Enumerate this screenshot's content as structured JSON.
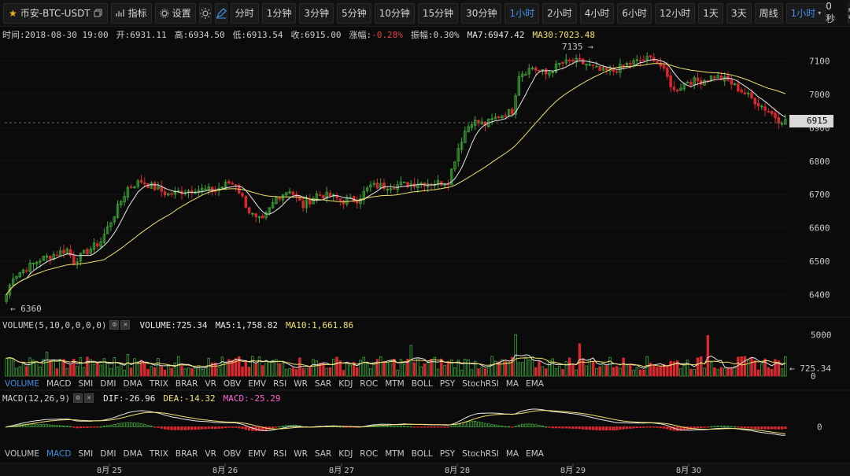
{
  "toolbar": {
    "symbol": "币安-BTC-USDT",
    "indicators_label": "指标",
    "settings_label": "设置",
    "intervals": [
      "分时",
      "1分钟",
      "3分钟",
      "5分钟",
      "10分钟",
      "15分钟",
      "30分钟",
      "1小时",
      "2小时",
      "4小时",
      "6小时",
      "12小时",
      "1天",
      "3天",
      "周线"
    ],
    "active_interval": "1小时",
    "interval_dropdown": "1小时",
    "seconds": "0秒"
  },
  "info": {
    "time_label": "时间:",
    "time": "2018-08-30 19:00",
    "open_label": "开:",
    "open": "6931.11",
    "high_label": "高:",
    "high": "6934.50",
    "low_label": "低:",
    "low": "6913.54",
    "close_label": "收:",
    "close": "6915.00",
    "change_label": "涨幅:",
    "change": "-0.28%",
    "amplitude_label": "振幅:",
    "amplitude": "0.30%",
    "ma7_label": "MA7:",
    "ma7": "6947.42",
    "ma30_label": "MA30:",
    "ma30": "7023.48"
  },
  "volume_info": {
    "name": "VOLUME(5,10,0,0,0,0)",
    "volume_label": "VOLUME:",
    "volume": "725.34",
    "ma5_label": "MA5:",
    "ma5": "1,758.82",
    "ma10_label": "MA10:",
    "ma10": "1,661.86"
  },
  "macd_info": {
    "name": "MACD(12,26,9)",
    "dif_label": "DIF:",
    "dif": "-26.96",
    "dea_label": "DEA:",
    "dea": "-14.32",
    "macd_label": "MACD:",
    "macd": "-25.29"
  },
  "indicator_tabs": [
    "VOLUME",
    "MACD",
    "SMI",
    "DMI",
    "DMA",
    "TRIX",
    "BRAR",
    "VR",
    "OBV",
    "EMV",
    "RSI",
    "WR",
    "SAR",
    "KDJ",
    "ROC",
    "MTM",
    "BOLL",
    "PSY",
    "StochRSI",
    "MA",
    "EMA"
  ],
  "vol_tabs_active": "VOLUME",
  "macd_tabs_active": "MACD",
  "price_box": "6915",
  "annotations": {
    "high": "7135",
    "low": "6360",
    "vol_last": "725.34"
  },
  "colors": {
    "up": "#3ea83a",
    "down": "#d8292f",
    "ma7": "#e8e8e8",
    "ma30": "#f2e26b",
    "active": "#3f8fe2",
    "bg": "#0b0b0b"
  },
  "chart_data": {
    "type": "candlestick",
    "x_tick_labels": [
      "8月 25",
      "8月 26",
      "8月 27",
      "8月 28",
      "8月 29",
      "8月 30"
    ],
    "price_axis": {
      "ticks": [
        "6400",
        "6500",
        "6600",
        "6700",
        "6800",
        "6900",
        "7000",
        "7100"
      ],
      "range": [
        6340,
        7160
      ]
    },
    "volume_axis": {
      "ticks": [
        "5000",
        "0"
      ],
      "range": [
        0,
        5500
      ]
    },
    "macd_axis": {
      "ticks": [
        "0"
      ],
      "range": [
        -55,
        55
      ]
    },
    "anchors": [
      [
        0,
        6400
      ],
      [
        2,
        6455
      ],
      [
        6,
        6480
      ],
      [
        10,
        6505
      ],
      [
        14,
        6520
      ],
      [
        18,
        6535
      ],
      [
        20,
        6500
      ],
      [
        24,
        6530
      ],
      [
        28,
        6560
      ],
      [
        32,
        6640
      ],
      [
        36,
        6720
      ],
      [
        40,
        6740
      ],
      [
        44,
        6720
      ],
      [
        48,
        6700
      ],
      [
        52,
        6710
      ],
      [
        56,
        6715
      ],
      [
        62,
        6712
      ],
      [
        66,
        6735
      ],
      [
        68,
        6730
      ],
      [
        72,
        6650
      ],
      [
        74,
        6625
      ],
      [
        76,
        6620
      ],
      [
        80,
        6690
      ],
      [
        84,
        6715
      ],
      [
        86,
        6690
      ],
      [
        88,
        6665
      ],
      [
        92,
        6700
      ],
      [
        96,
        6695
      ],
      [
        100,
        6680
      ],
      [
        104,
        6685
      ],
      [
        108,
        6725
      ],
      [
        112,
        6725
      ],
      [
        118,
        6730
      ],
      [
        124,
        6735
      ],
      [
        128,
        6735
      ],
      [
        131,
        6740
      ],
      [
        134,
        6840
      ],
      [
        136,
        6890
      ],
      [
        138,
        6920
      ],
      [
        142,
        6910
      ],
      [
        146,
        6935
      ],
      [
        150,
        6950
      ],
      [
        152,
        7060
      ],
      [
        156,
        7080
      ],
      [
        160,
        7060
      ],
      [
        164,
        7090
      ],
      [
        168,
        7100
      ],
      [
        172,
        7090
      ],
      [
        176,
        7070
      ],
      [
        180,
        7070
      ],
      [
        184,
        7090
      ],
      [
        188,
        7100
      ],
      [
        192,
        7110
      ],
      [
        194,
        7085
      ],
      [
        196,
        7050
      ],
      [
        198,
        7010
      ],
      [
        202,
        7040
      ],
      [
        206,
        7040
      ],
      [
        210,
        7055
      ],
      [
        214,
        7040
      ],
      [
        218,
        7010
      ],
      [
        222,
        6980
      ],
      [
        226,
        6950
      ],
      [
        229,
        6925
      ],
      [
        231,
        6920
      ]
    ],
    "volume_spikes": {
      "151": 5000,
      "208": 4900,
      "170": 3900,
      "120": 3700,
      "12": 2900,
      "36": 2600
    }
  }
}
